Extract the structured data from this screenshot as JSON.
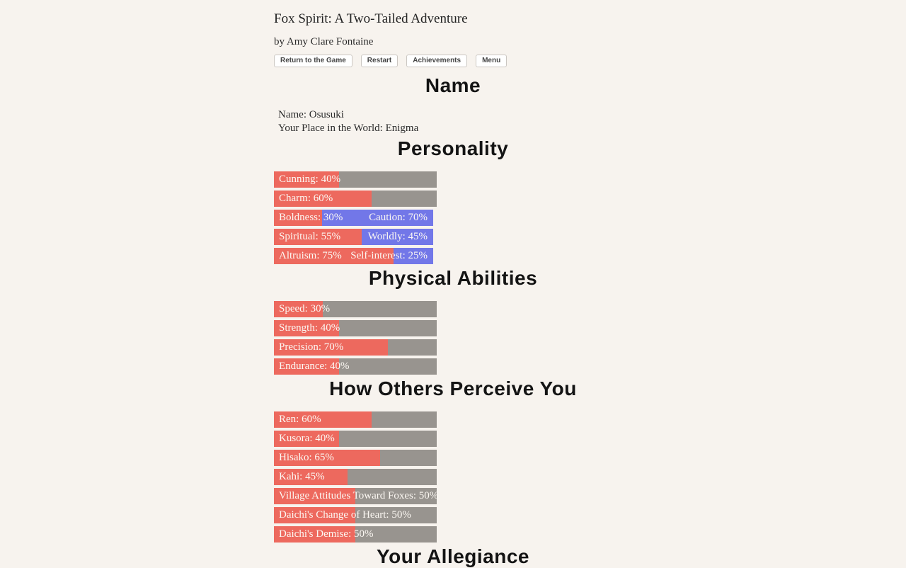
{
  "header": {
    "title": "Fox Spirit: A Two-Tailed Adventure",
    "byline": "by Amy Clare Fontaine"
  },
  "toolbar": {
    "buttons": [
      "Return to the Game",
      "Restart",
      "Achievements",
      "Menu"
    ]
  },
  "sections": [
    {
      "heading": "Name",
      "type": "text",
      "lines": [
        {
          "label": "Name",
          "value": "Osusuki"
        },
        {
          "label": "Your Place in the World",
          "value": "Enigma"
        }
      ]
    },
    {
      "heading": "Personality",
      "type": "bars",
      "bars": [
        {
          "label": "Cunning",
          "value": 40
        },
        {
          "label": "Charm",
          "value": 60
        },
        {
          "label": "Boldness",
          "value": 30,
          "opposed": {
            "label": "Caution",
            "value": 70
          }
        },
        {
          "label": "Spiritual",
          "value": 55,
          "opposed": {
            "label": "Worldly",
            "value": 45
          }
        },
        {
          "label": "Altruism",
          "value": 75,
          "opposed": {
            "label": "Self-interest",
            "value": 25
          }
        }
      ]
    },
    {
      "heading": "Physical Abilities",
      "type": "bars",
      "bars": [
        {
          "label": "Speed",
          "value": 30
        },
        {
          "label": "Strength",
          "value": 40
        },
        {
          "label": "Precision",
          "value": 70
        },
        {
          "label": "Endurance",
          "value": 40
        }
      ]
    },
    {
      "heading": "How Others Perceive You",
      "type": "bars",
      "bars": [
        {
          "label": "Ren",
          "value": 60
        },
        {
          "label": "Kusora",
          "value": 40
        },
        {
          "label": "Hisako",
          "value": 65
        },
        {
          "label": "Kahi",
          "value": 45
        },
        {
          "label": "Village Attitudes Toward Foxes",
          "value": 50
        },
        {
          "label": "Daichi's Change of Heart",
          "value": 50
        },
        {
          "label": "Daichi's Demise",
          "value": 50
        }
      ]
    },
    {
      "heading": "Your Allegiance",
      "type": "bars",
      "bars": []
    }
  ],
  "colors": {
    "page_background": "#f7f3ee",
    "stat_fill": "#ed695e",
    "stat_empty": "#98948f",
    "stat_opposed": "#7277e8",
    "bar_text": "#fcf8f3"
  }
}
